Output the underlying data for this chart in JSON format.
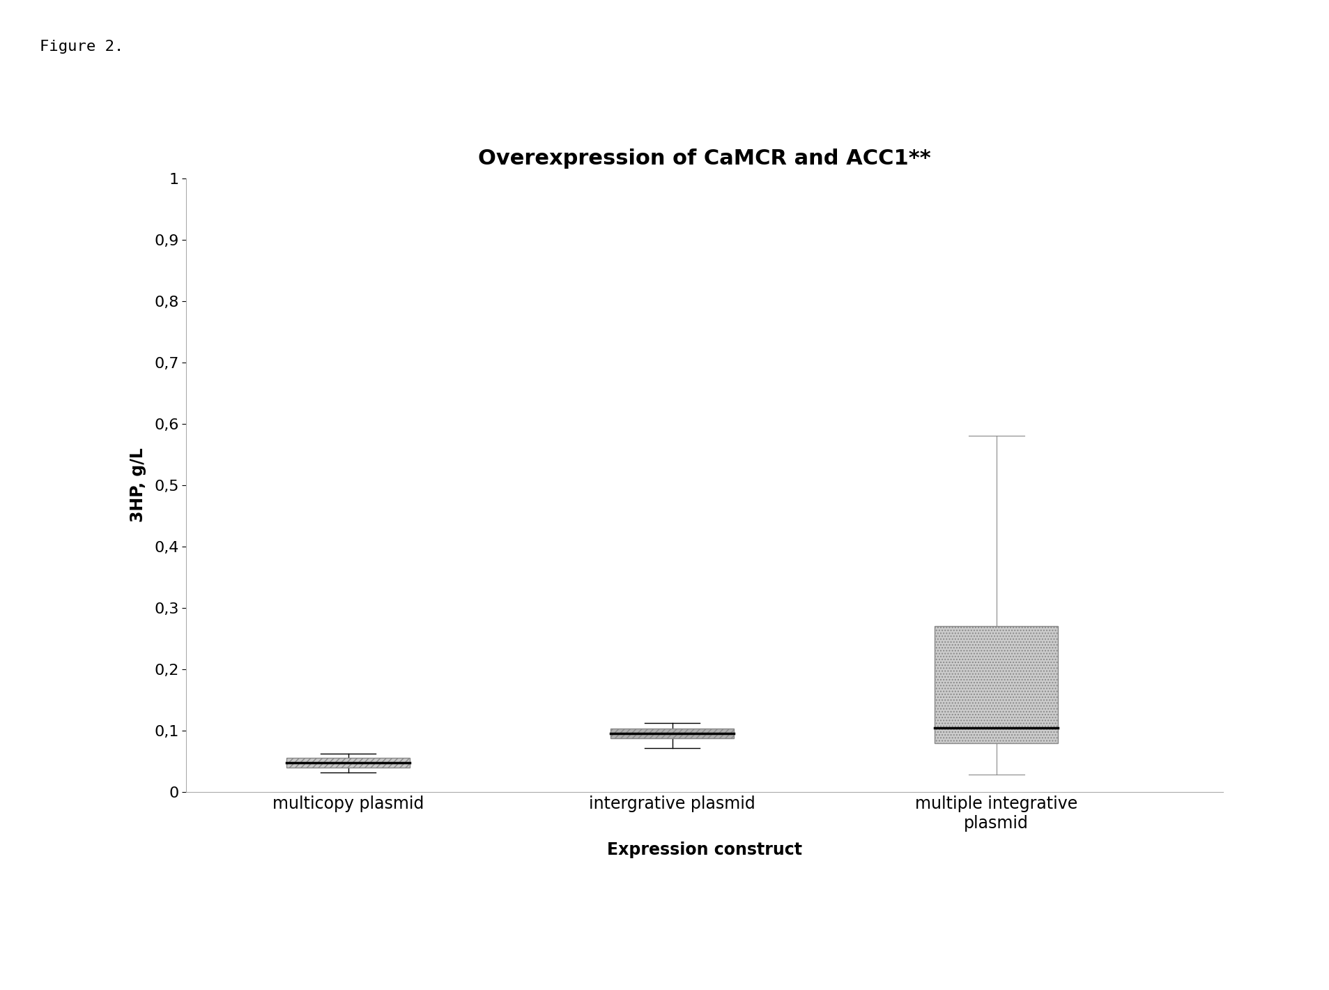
{
  "title": "Overexpression of CaMCR and ACC1**",
  "xlabel": "Expression construct",
  "ylabel": "3HP, g/L",
  "figure_label": "Figure 2.",
  "categories": [
    "multicopy plasmid",
    "intergrative plasmid",
    "multiple integrative\nplasmid"
  ],
  "ylim": [
    0,
    1.0
  ],
  "yticks": [
    0,
    0.1,
    0.2,
    0.3,
    0.4,
    0.5,
    0.6,
    0.7,
    0.8,
    0.9,
    1
  ],
  "ytick_labels": [
    "0",
    "0,1",
    "0,2",
    "0,3",
    "0,4",
    "0,5",
    "0,6",
    "0,7",
    "0,8",
    "0,9",
    "1"
  ],
  "box1": {
    "whislo": 0.032,
    "q1": 0.04,
    "med": 0.048,
    "q3": 0.056,
    "whishi": 0.062
  },
  "box2": {
    "whislo": 0.072,
    "q1": 0.087,
    "med": 0.095,
    "q3": 0.103,
    "whishi": 0.113
  },
  "box3": {
    "whislo": 0.028,
    "q1": 0.08,
    "med": 0.105,
    "q3": 0.27,
    "whishi": 0.58
  },
  "background_color": "#ffffff",
  "title_fontsize": 22,
  "label_fontsize": 17,
  "tick_fontsize": 16,
  "figure_label_fontsize": 16
}
